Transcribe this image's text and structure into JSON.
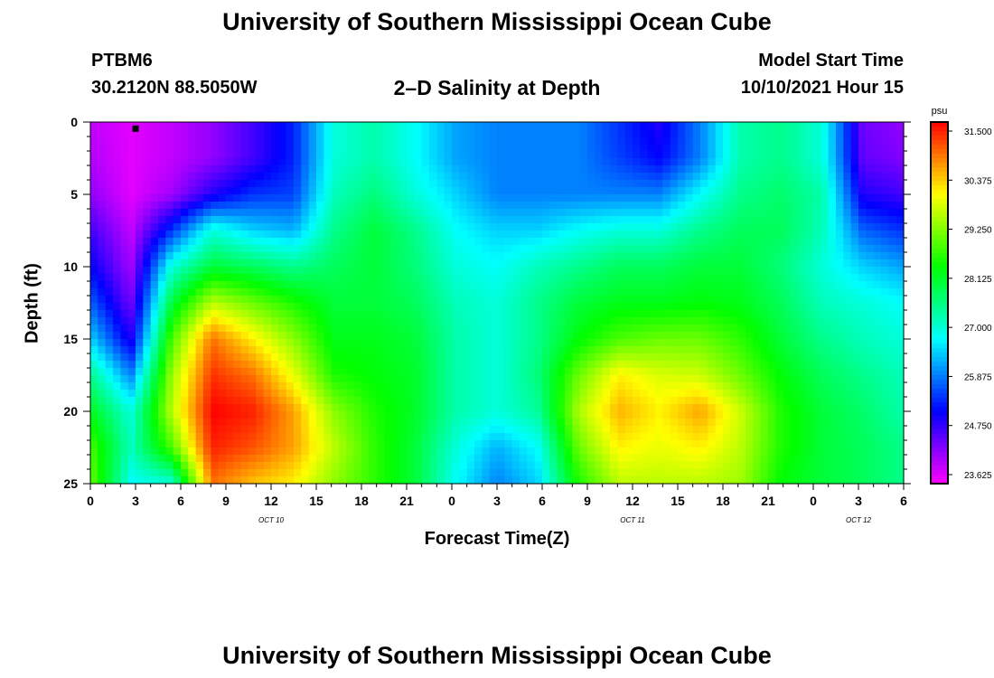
{
  "header": {
    "title": "University of Southern Mississippi Ocean Cube",
    "station_id": "PTBM6",
    "coordinates": "30.2120N  88.5050W",
    "plot_title": "2–D Salinity at Depth",
    "model_start_label": "Model Start Time",
    "model_start_value": "10/10/2021 Hour 15"
  },
  "footer": {
    "title": "University of Southern Mississippi Ocean Cube"
  },
  "chart_data": {
    "type": "heatmap",
    "title": "2–D Salinity at Depth",
    "xlabel": "Forecast Time(Z)",
    "ylabel": "Depth (ft)",
    "x_hours": [
      0,
      3,
      6,
      9,
      12,
      15,
      18,
      21,
      24,
      27,
      30,
      33,
      36,
      39,
      42,
      45,
      48,
      51,
      54
    ],
    "x_tick_labels": [
      "0",
      "3",
      "6",
      "9",
      "12",
      "15",
      "18",
      "21",
      "0",
      "3",
      "6",
      "9",
      "12",
      "15",
      "18",
      "21",
      "0",
      "3",
      "6"
    ],
    "date_labels": [
      {
        "text": "OCT 10",
        "hour": 12
      },
      {
        "text": "OCT 11",
        "hour": 36
      },
      {
        "text": "OCT 12",
        "hour": 51
      }
    ],
    "xlim": [
      0,
      54
    ],
    "y_ticks": [
      0,
      5,
      10,
      15,
      20,
      25
    ],
    "y_tick_labels": [
      "0",
      "5",
      "10",
      "15",
      "20",
      "25"
    ],
    "ylim": [
      0,
      25
    ],
    "station_depth_marker": {
      "hour": 3,
      "depth": 0.3
    },
    "colorbar": {
      "unit": "psu",
      "min": 23.625,
      "max": 31.5,
      "tick_values": [
        31.5,
        30.375,
        29.25,
        28.125,
        27.0,
        25.875,
        24.75,
        23.625
      ],
      "tick_labels": [
        "31.500",
        "30.375",
        "29.250",
        "28.125",
        "27.000",
        "25.875",
        "24.750",
        "23.625"
      ],
      "colors": [
        "#ff00ff",
        "#8000ff",
        "#0000ff",
        "#0080ff",
        "#00ffff",
        "#00ff80",
        "#00ff00",
        "#80ff00",
        "#ffff00",
        "#ff8000",
        "#ff0000"
      ]
    },
    "depth_levels": [
      0,
      2.5,
      5,
      7.5,
      10,
      12.5,
      15,
      17.5,
      20,
      22.5,
      25
    ],
    "salinity_grid": [
      [
        24.0,
        23.8,
        24.0,
        24.3,
        24.8,
        25.4,
        27.0,
        27.3,
        26.8,
        26.2,
        26.0,
        26.0,
        26.0,
        25.5,
        25.0,
        26.0,
        27.3,
        27.5,
        27.0,
        24.5,
        24.3
      ],
      [
        24.1,
        23.8,
        24.0,
        24.3,
        24.8,
        25.4,
        27.0,
        27.3,
        26.8,
        26.2,
        26.0,
        26.0,
        26.0,
        25.6,
        25.2,
        26.0,
        27.3,
        27.5,
        27.0,
        24.6,
        24.4
      ],
      [
        24.3,
        23.8,
        24.2,
        25.0,
        25.5,
        25.6,
        27.2,
        27.6,
        27.0,
        26.5,
        26.0,
        26.0,
        26.0,
        26.0,
        26.0,
        26.8,
        27.5,
        27.7,
        27.3,
        25.0,
        24.8
      ],
      [
        24.8,
        24.0,
        25.5,
        27.0,
        26.5,
        26.3,
        27.5,
        28.0,
        27.5,
        26.8,
        26.5,
        26.5,
        26.8,
        27.0,
        27.0,
        27.5,
        27.8,
        27.8,
        27.2,
        25.8,
        25.5
      ],
      [
        25.2,
        24.2,
        27.0,
        28.0,
        27.8,
        27.5,
        27.8,
        28.0,
        27.6,
        27.0,
        26.8,
        27.2,
        27.5,
        27.8,
        27.8,
        28.0,
        28.0,
        27.6,
        27.0,
        26.5,
        26.2
      ],
      [
        25.8,
        24.5,
        28.0,
        29.5,
        29.0,
        28.5,
        28.0,
        28.0,
        27.8,
        27.2,
        27.0,
        27.5,
        28.0,
        28.2,
        28.2,
        28.3,
        28.2,
        27.8,
        27.2,
        27.0,
        26.8
      ],
      [
        26.5,
        25.0,
        28.8,
        30.8,
        30.0,
        29.2,
        28.2,
        28.2,
        28.0,
        27.3,
        27.0,
        27.5,
        28.3,
        28.8,
        29.0,
        29.0,
        28.6,
        28.0,
        27.5,
        27.2,
        27.0
      ],
      [
        27.5,
        26.0,
        29.3,
        31.2,
        30.8,
        29.8,
        28.5,
        28.3,
        28.1,
        27.3,
        27.0,
        27.6,
        29.0,
        30.0,
        29.7,
        29.6,
        29.0,
        28.3,
        27.8,
        27.5,
        27.2
      ],
      [
        28.2,
        27.0,
        29.5,
        31.5,
        31.3,
        30.5,
        29.2,
        28.5,
        28.1,
        27.3,
        27.0,
        27.4,
        29.4,
        30.4,
        30.0,
        30.5,
        29.6,
        28.5,
        28.0,
        27.7,
        27.3
      ],
      [
        28.8,
        27.2,
        28.8,
        31.3,
        31.0,
        30.5,
        29.5,
        28.6,
        28.0,
        27.0,
        26.3,
        26.8,
        29.0,
        30.0,
        29.8,
        30.0,
        29.5,
        28.5,
        28.0,
        27.8,
        27.5
      ],
      [
        29.0,
        26.8,
        27.0,
        30.8,
        30.3,
        30.0,
        29.2,
        28.6,
        28.0,
        26.8,
        26.0,
        26.5,
        28.5,
        29.5,
        29.5,
        29.5,
        29.3,
        28.3,
        28.0,
        27.8,
        27.5
      ]
    ]
  }
}
